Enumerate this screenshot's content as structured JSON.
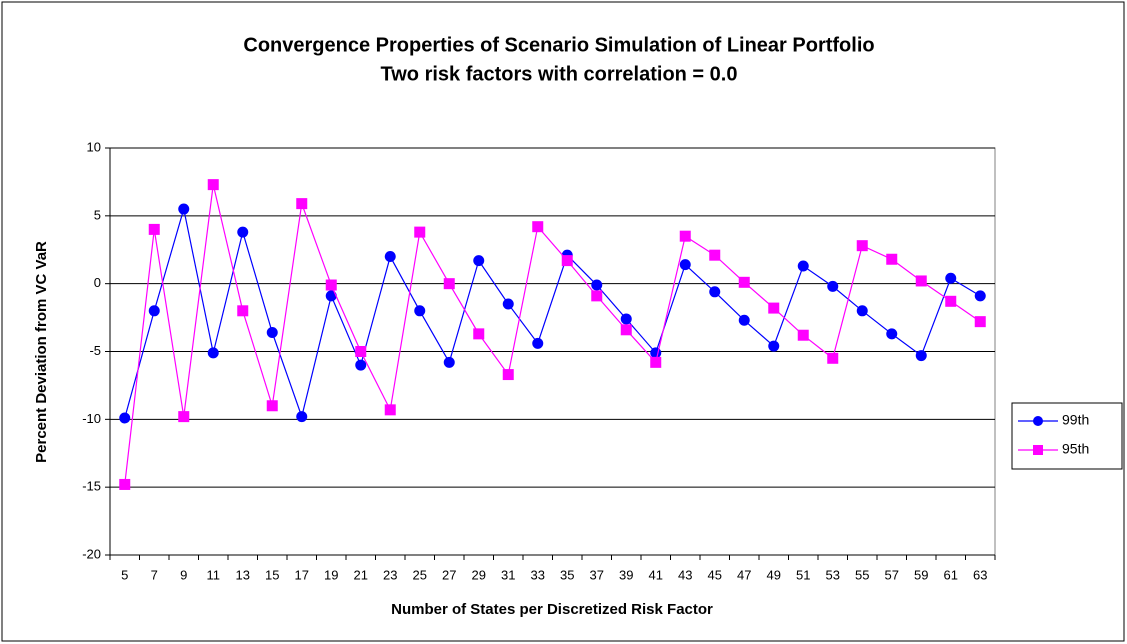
{
  "chart_data": {
    "type": "line",
    "title": "Convergence Properties of Scenario Simulation of Linear Portfolio",
    "subtitle": "Two risk factors with correlation = 0.0",
    "x_label": "Number of States per Discretized Risk Factor",
    "y_label": "Percent Deviation from VC VaR",
    "categories": [
      "5",
      "7",
      "9",
      "11",
      "13",
      "15",
      "17",
      "19",
      "21",
      "23",
      "25",
      "27",
      "29",
      "31",
      "33",
      "35",
      "37",
      "39",
      "41",
      "43",
      "45",
      "47",
      "49",
      "51",
      "53",
      "55",
      "57",
      "59",
      "61",
      "63"
    ],
    "series": [
      {
        "name": "99th",
        "color": "#0000ff",
        "marker": "circle",
        "values": [
          -9.9,
          -2.0,
          5.5,
          -5.1,
          3.8,
          -3.6,
          -9.8,
          -0.9,
          -6.0,
          2.0,
          -2.0,
          -5.8,
          1.7,
          -1.5,
          -4.4,
          2.1,
          -0.1,
          -2.6,
          -5.1,
          1.4,
          -0.6,
          -2.7,
          -4.6,
          1.3,
          -0.2,
          -2.0,
          -3.7,
          -5.3,
          0.4,
          -0.9
        ]
      },
      {
        "name": "95th",
        "color": "#ff00ff",
        "marker": "square",
        "values": [
          -14.8,
          4.0,
          -9.8,
          7.3,
          -2.0,
          -9.0,
          5.9,
          -0.1,
          -5.0,
          -9.3,
          3.8,
          0.0,
          -3.7,
          -6.7,
          4.2,
          1.7,
          -0.9,
          -3.4,
          -5.8,
          3.5,
          2.1,
          0.1,
          -1.8,
          -3.8,
          -5.5,
          2.8,
          1.8,
          0.2,
          -1.3,
          -2.8
        ]
      }
    ],
    "ylim": [
      -20,
      10
    ],
    "yticks": [
      -20,
      -15,
      -10,
      -5,
      0,
      5,
      10
    ],
    "grid": true,
    "legend": "right"
  }
}
